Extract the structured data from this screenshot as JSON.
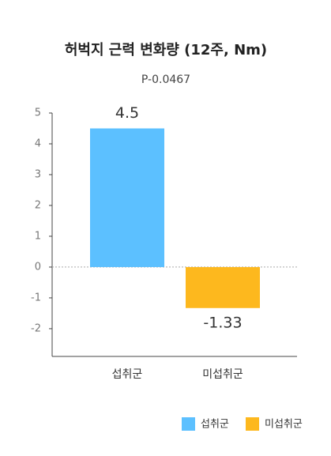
{
  "chart_data": {
    "type": "bar",
    "title": "허벅지 근력 변화량 (12주, Nm)",
    "subtitle": "P-0.0467",
    "categories": [
      "섭취군",
      "미섭취군"
    ],
    "series": [
      {
        "name": "섭취군",
        "color": "#5cc0ff",
        "values": [
          4.5,
          null
        ]
      },
      {
        "name": "미섭취군",
        "color": "#fdb81e",
        "values": [
          null,
          -1.33
        ]
      }
    ],
    "ylim": [
      -2.9,
      5
    ],
    "yticks": [
      5,
      4,
      3,
      2,
      1,
      0,
      -1,
      -2
    ],
    "legend": "bottom-right"
  }
}
